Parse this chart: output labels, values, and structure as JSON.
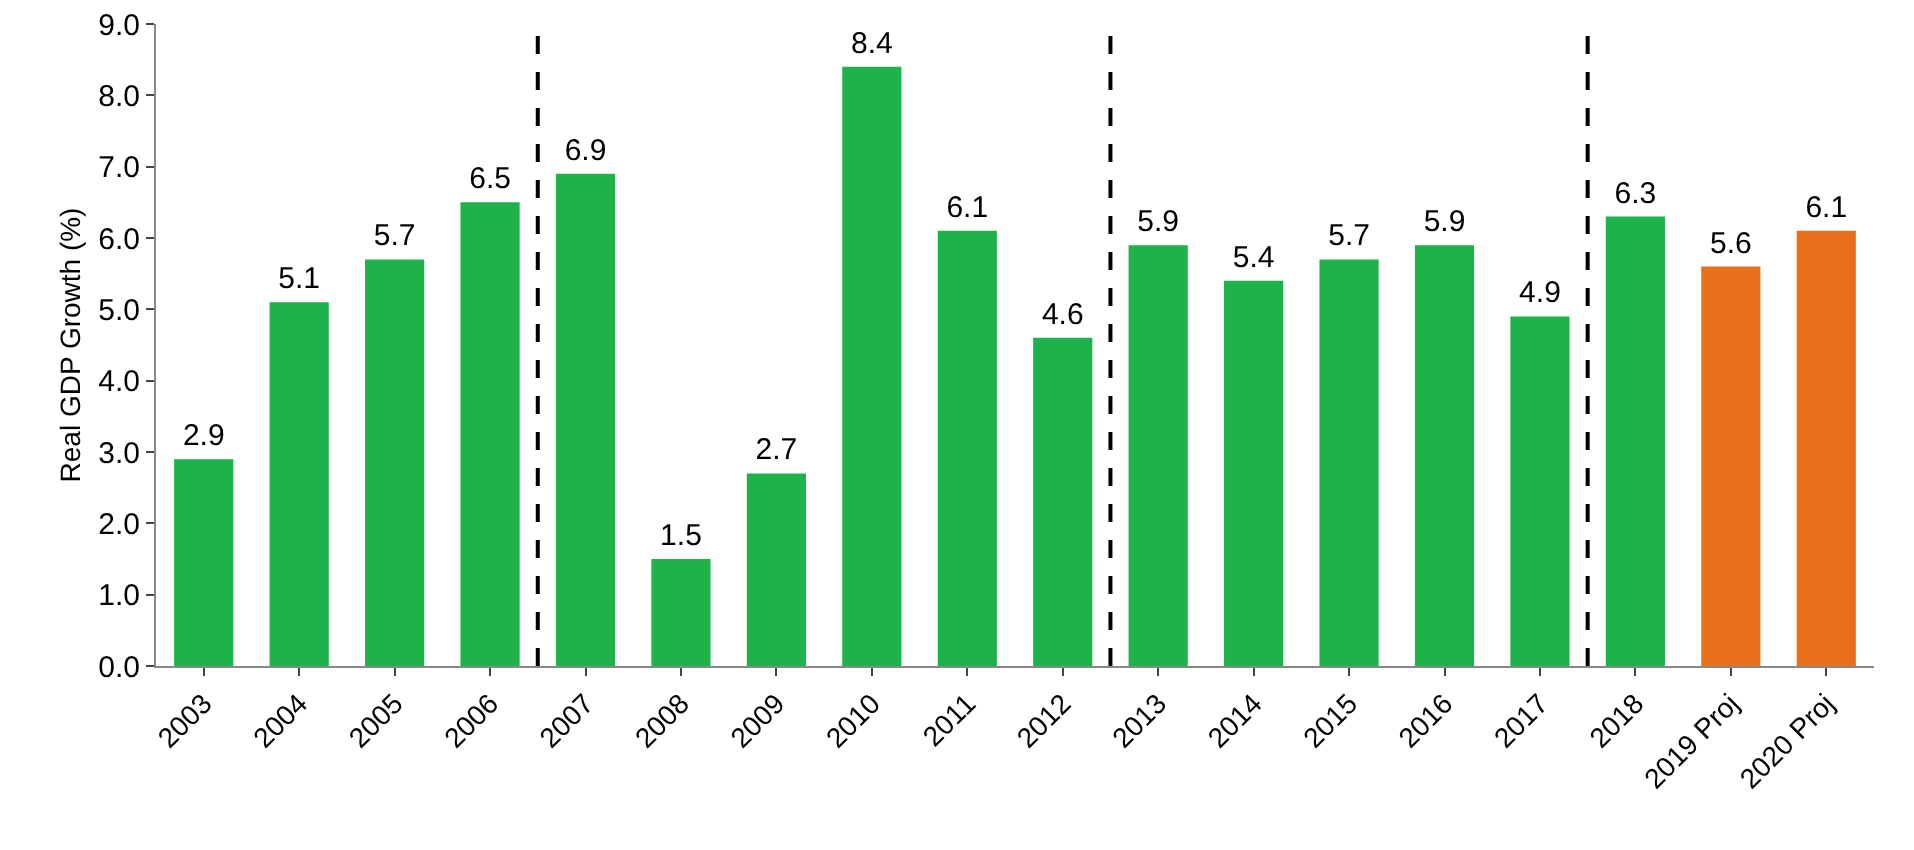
{
  "chart_data": {
    "type": "bar",
    "ylabel": "Real GDP Growth (%)",
    "categories": [
      "2003",
      "2004",
      "2005",
      "2006",
      "2007",
      "2008",
      "2009",
      "2010",
      "2011",
      "2012",
      "2013",
      "2014",
      "2015",
      "2016",
      "2017",
      "2018",
      "2019 Proj",
      "2020 Proj"
    ],
    "values": [
      2.9,
      5.1,
      5.7,
      6.5,
      6.9,
      1.5,
      2.7,
      8.4,
      6.1,
      4.6,
      5.9,
      5.4,
      5.7,
      5.9,
      4.9,
      6.3,
      5.6,
      6.1
    ],
    "colors": [
      "#1db34a",
      "#1db34a",
      "#1db34a",
      "#1db34a",
      "#1db34a",
      "#1db34a",
      "#1db34a",
      "#1db34a",
      "#1db34a",
      "#1db34a",
      "#1db34a",
      "#1db34a",
      "#1db34a",
      "#1db34a",
      "#1db34a",
      "#1db34a",
      "#e8701a",
      "#e8701a"
    ],
    "ylim": [
      0,
      9
    ],
    "yticks": [
      {
        "value": 0,
        "label": "0.0"
      },
      {
        "value": 1,
        "label": "1.0"
      },
      {
        "value": 2,
        "label": "2.0"
      },
      {
        "value": 3,
        "label": "3.0"
      },
      {
        "value": 4,
        "label": "4.0"
      },
      {
        "value": 5,
        "label": "5.0"
      },
      {
        "value": 6,
        "label": "6.0"
      },
      {
        "value": 7,
        "label": "7.0"
      },
      {
        "value": 8,
        "label": "8.0"
      },
      {
        "value": 9,
        "label": "9.0"
      }
    ],
    "data_labels": true,
    "grid": false
  }
}
